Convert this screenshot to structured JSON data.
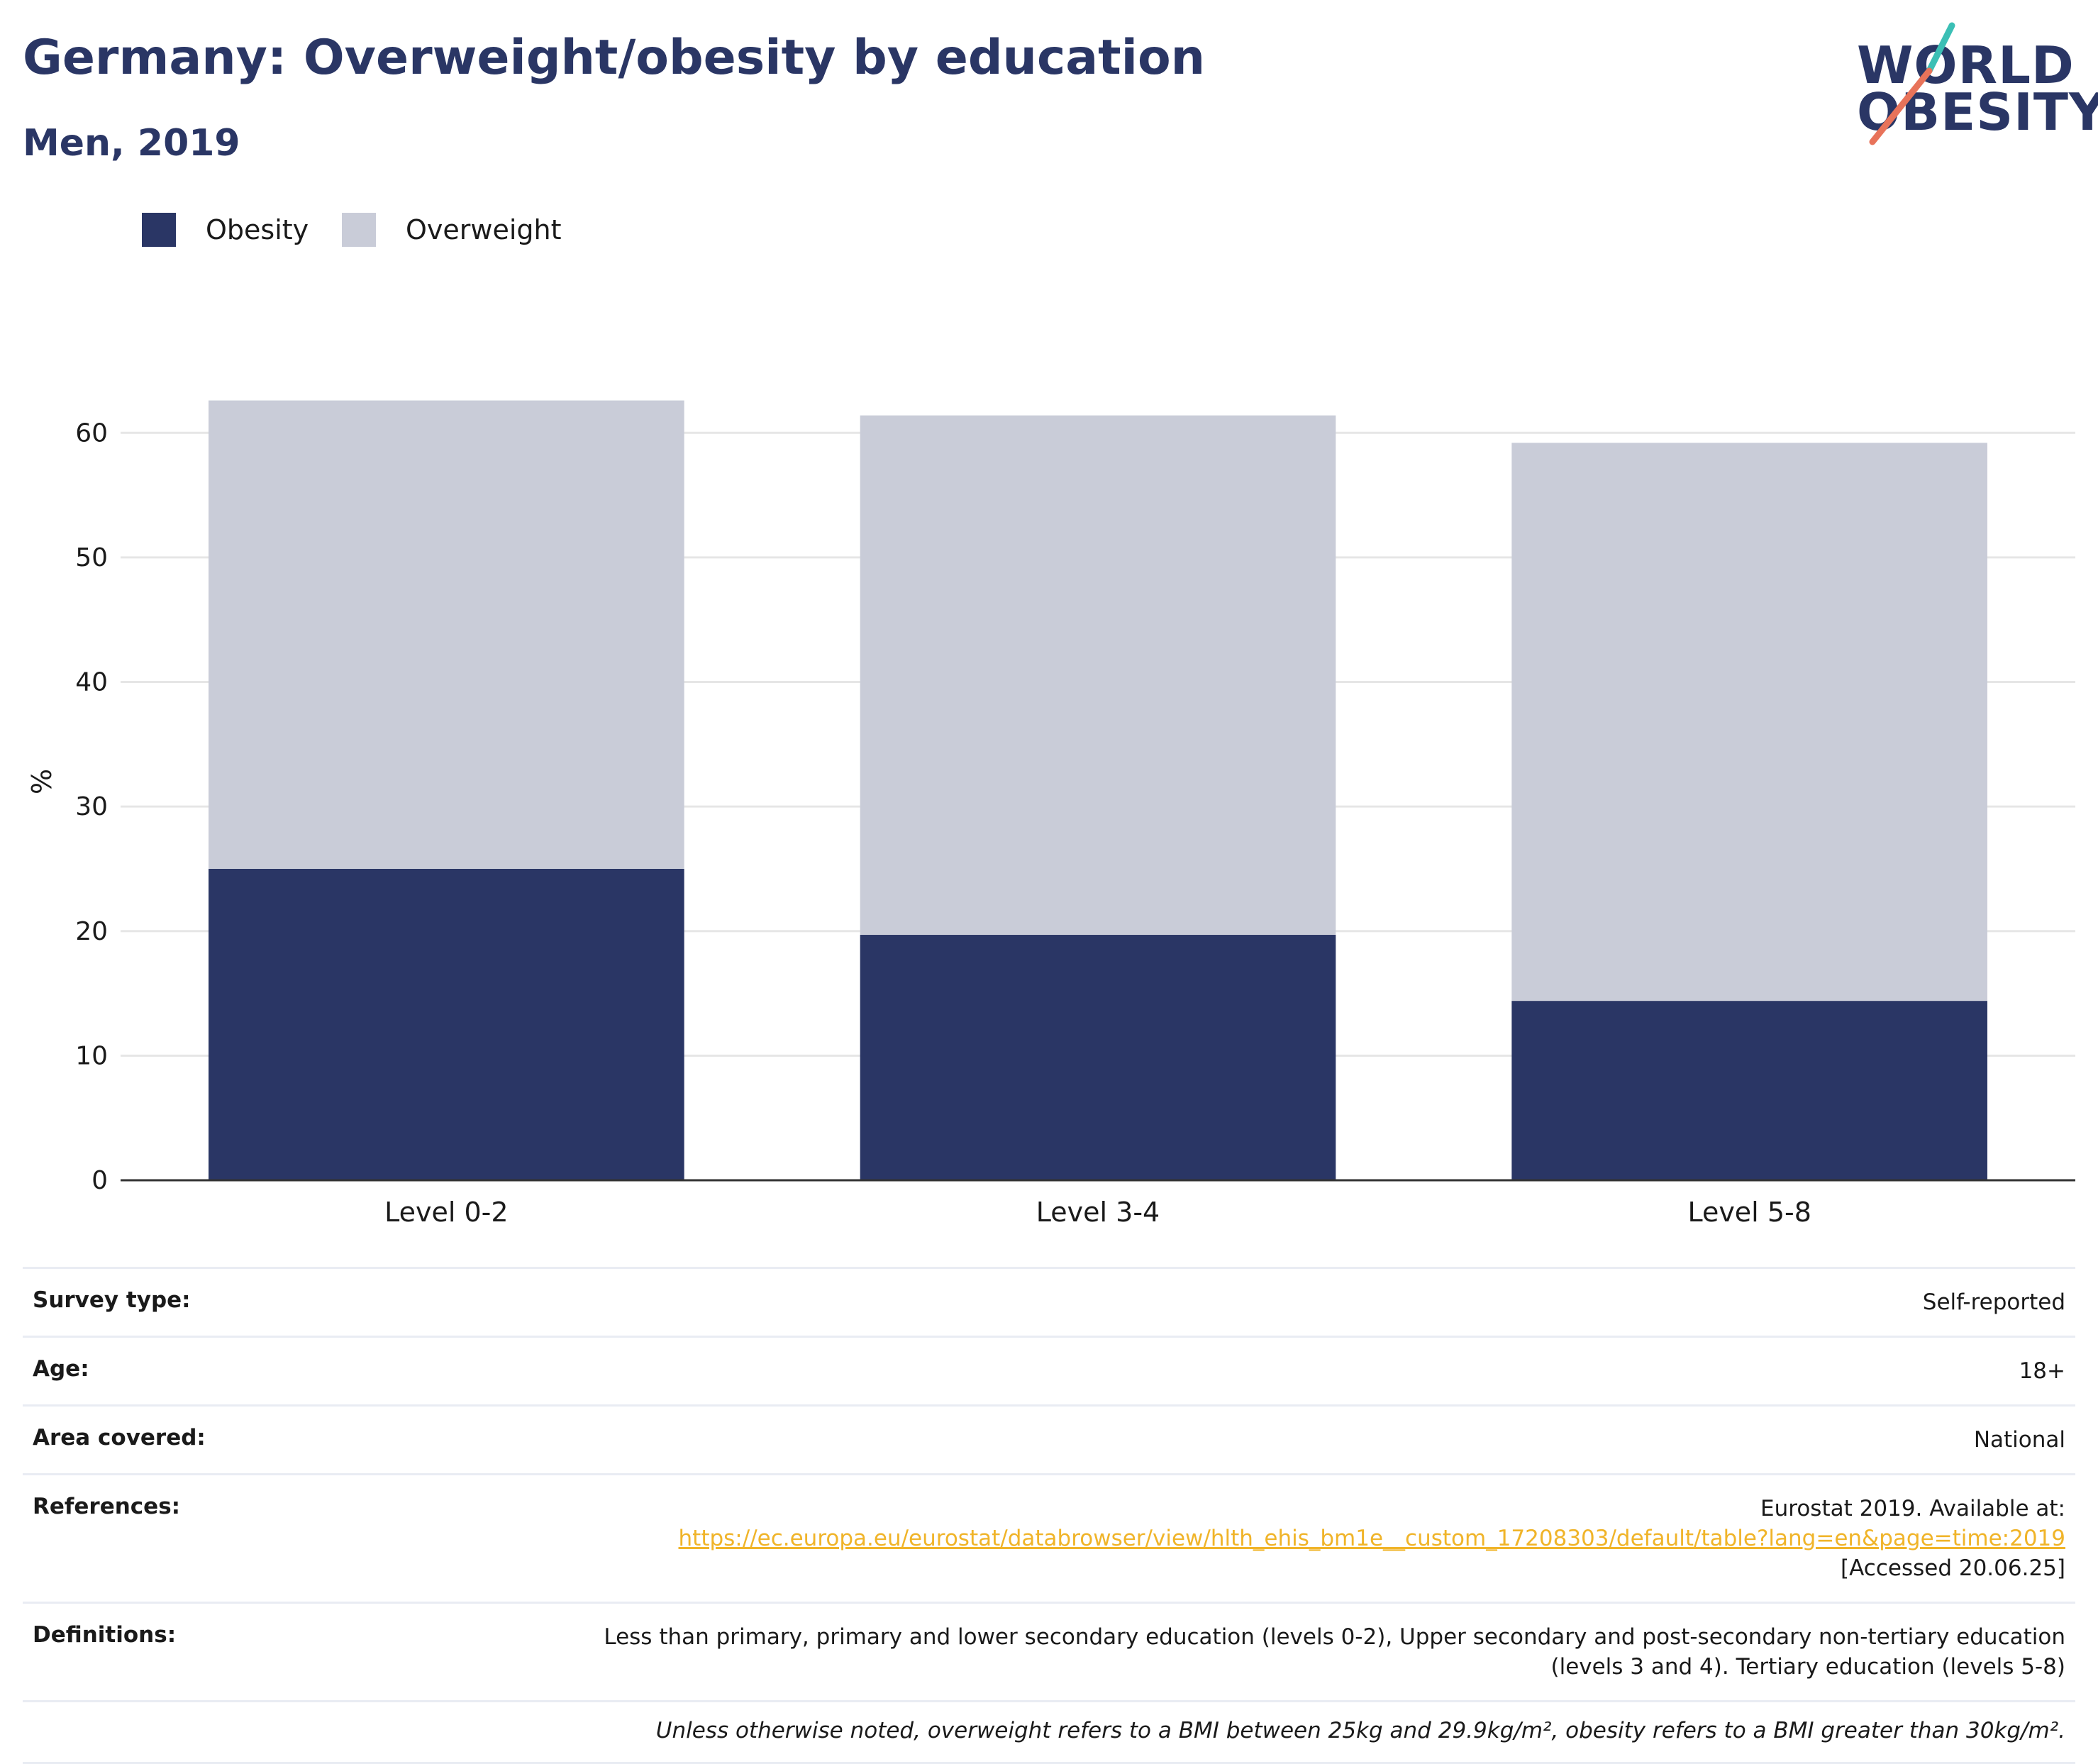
{
  "header": {
    "title": "Germany: Overweight/obesity by education",
    "subtitle": "Men, 2019"
  },
  "logo": {
    "line1": "WORLD",
    "line2": "OBESITY",
    "slash_colors": [
      "#3bbfb5",
      "#e8735a"
    ]
  },
  "legend": {
    "items": [
      {
        "label": "Obesity",
        "color": "#2a3665"
      },
      {
        "label": "Overweight",
        "color": "#c9ccd8"
      }
    ]
  },
  "chart_data": {
    "type": "bar",
    "stacked": true,
    "title": "Germany: Overweight/obesity by education",
    "subtitle": "Men, 2019",
    "xlabel": "",
    "ylabel": "%",
    "ylim": [
      0,
      64
    ],
    "yticks": [
      0,
      10,
      20,
      30,
      40,
      50,
      60
    ],
    "grid": true,
    "legend_position": "top-left",
    "categories": [
      "Level 0-2",
      "Level 3-4",
      "Level 5-8"
    ],
    "series": [
      {
        "name": "Obesity",
        "color": "#2a3665",
        "values": [
          25.0,
          19.7,
          14.4
        ]
      },
      {
        "name": "Overweight",
        "color": "#c9ccd8",
        "values": [
          37.6,
          41.7,
          44.8
        ]
      }
    ]
  },
  "meta": {
    "survey_label": "Survey type:",
    "survey_value": "Self-reported",
    "age_label": "Age:",
    "age_value": "18+",
    "area_label": "Area covered:",
    "area_value": "National",
    "references_label": "References:",
    "references_text": "Eurostat 2019. Available at:",
    "references_link": "https://ec.europa.eu/eurostat/databrowser/view/hlth_ehis_bm1e__custom_17208303/default/table?lang=en&page=time:2019",
    "references_accessed": "[Accessed 20.06.25]",
    "definitions_label": "Definitions:",
    "definitions_line1": "Less than primary, primary and lower secondary education (levels 0-2), Upper secondary and post-secondary non-tertiary education",
    "definitions_line2": "(levels 3 and 4). Tertiary education (levels 5-8)",
    "note": "Unless otherwise noted, overweight refers to a BMI between 25kg and 29.9kg/m², obesity refers to a BMI greater than 30kg/m²."
  }
}
